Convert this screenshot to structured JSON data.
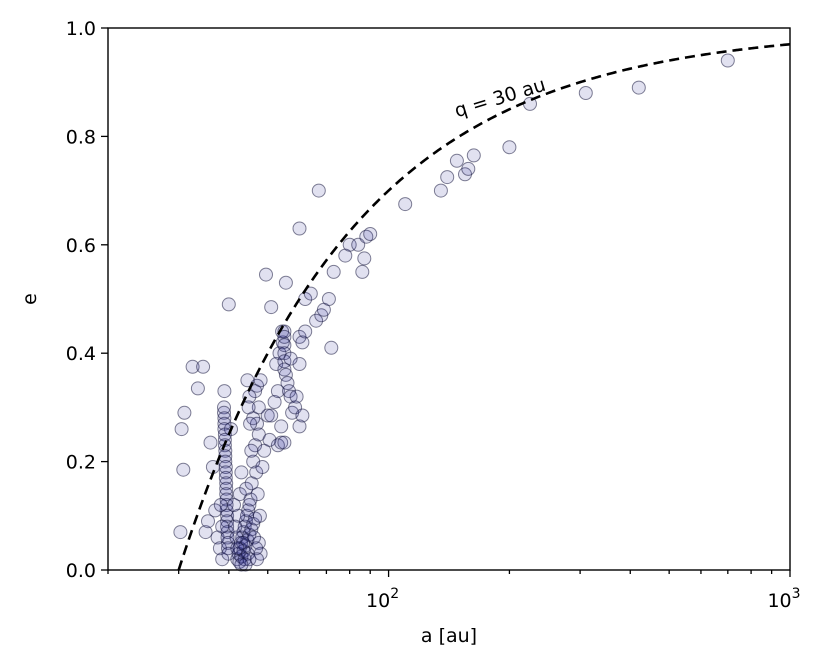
{
  "chart_data": {
    "type": "scatter",
    "xlabel": "a [au]",
    "ylabel": "e",
    "xscale": "log",
    "xlim": [
      20,
      1000
    ],
    "ylim": [
      0.0,
      1.0
    ],
    "grid": false,
    "x_ticks": [
      {
        "value": 100,
        "base": "10",
        "exp": "2"
      },
      {
        "value": 1000,
        "base": "10",
        "exp": "3"
      }
    ],
    "y_ticks": [
      "0.0",
      "0.2",
      "0.4",
      "0.6",
      "0.8",
      "1.0"
    ],
    "point_color": "#1a1a8c",
    "curve": {
      "label_text": "q  =  30  au",
      "perihelion_au": 30,
      "style": "dashed",
      "color": "#000000"
    },
    "points": [
      [
        30.5,
        0.26
      ],
      [
        31,
        0.29
      ],
      [
        30.8,
        0.185
      ],
      [
        30.3,
        0.07
      ],
      [
        32.5,
        0.375
      ],
      [
        34.5,
        0.375
      ],
      [
        33.5,
        0.335
      ],
      [
        36,
        0.235
      ],
      [
        35,
        0.07
      ],
      [
        35.5,
        0.09
      ],
      [
        36.5,
        0.19
      ],
      [
        37,
        0.11
      ],
      [
        37.5,
        0.06
      ],
      [
        38,
        0.04
      ],
      [
        38.5,
        0.02
      ],
      [
        39,
        0.33
      ],
      [
        40,
        0.49
      ],
      [
        40.5,
        0.26
      ],
      [
        38.9,
        0.3
      ],
      [
        38.9,
        0.29
      ],
      [
        39,
        0.28
      ],
      [
        39,
        0.27
      ],
      [
        39,
        0.26
      ],
      [
        39.1,
        0.25
      ],
      [
        39.1,
        0.24
      ],
      [
        39.1,
        0.23
      ],
      [
        39.2,
        0.22
      ],
      [
        39.2,
        0.21
      ],
      [
        39.2,
        0.2
      ],
      [
        39.3,
        0.19
      ],
      [
        39.3,
        0.18
      ],
      [
        39.3,
        0.17
      ],
      [
        39.4,
        0.16
      ],
      [
        39.4,
        0.15
      ],
      [
        39.4,
        0.14
      ],
      [
        39.5,
        0.13
      ],
      [
        39.5,
        0.12
      ],
      [
        39.5,
        0.11
      ],
      [
        39.6,
        0.1
      ],
      [
        39.6,
        0.09
      ],
      [
        39.6,
        0.08
      ],
      [
        39.7,
        0.07
      ],
      [
        39.7,
        0.06
      ],
      [
        39.8,
        0.05
      ],
      [
        39.8,
        0.04
      ],
      [
        39.9,
        0.03
      ],
      [
        38.2,
        0.12
      ],
      [
        38.5,
        0.08
      ],
      [
        42,
        0.02
      ],
      [
        42.3,
        0.03
      ],
      [
        42.6,
        0.04
      ],
      [
        42.9,
        0.05
      ],
      [
        43.2,
        0.06
      ],
      [
        43.5,
        0.07
      ],
      [
        43.8,
        0.08
      ],
      [
        44.1,
        0.09
      ],
      [
        44.4,
        0.1
      ],
      [
        44.7,
        0.11
      ],
      [
        45,
        0.12
      ],
      [
        45.3,
        0.13
      ],
      [
        42.5,
        0.015
      ],
      [
        43,
        0.025
      ],
      [
        43.5,
        0.035
      ],
      [
        44,
        0.045
      ],
      [
        44.5,
        0.055
      ],
      [
        45,
        0.065
      ],
      [
        45.5,
        0.075
      ],
      [
        46,
        0.085
      ],
      [
        46.5,
        0.095
      ],
      [
        41.8,
        0.06
      ],
      [
        42.2,
        0.1
      ],
      [
        42.6,
        0.14
      ],
      [
        43,
        0.18
      ],
      [
        43.4,
        0.05
      ],
      [
        43.8,
        0.02
      ],
      [
        44.2,
        0.15
      ],
      [
        44.6,
        0.03
      ],
      [
        45,
        0.02
      ],
      [
        45.6,
        0.16
      ],
      [
        46,
        0.2
      ],
      [
        46.5,
        0.23
      ],
      [
        47,
        0.27
      ],
      [
        47.5,
        0.3
      ],
      [
        47,
        0.34
      ],
      [
        48,
        0.35
      ],
      [
        46.5,
        0.33
      ],
      [
        47.5,
        0.25
      ],
      [
        46,
        0.28
      ],
      [
        45.5,
        0.22
      ],
      [
        46.8,
        0.18
      ],
      [
        47.2,
        0.14
      ],
      [
        47.8,
        0.1
      ],
      [
        46.2,
        0.06
      ],
      [
        47.5,
        0.05
      ],
      [
        48,
        0.03
      ],
      [
        46.8,
        0.04
      ],
      [
        47,
        0.02
      ],
      [
        44,
        0.01
      ],
      [
        43,
        0.01
      ],
      [
        42,
        0.04
      ],
      [
        41.5,
        0.08
      ],
      [
        41.2,
        0.12
      ],
      [
        45.2,
        0.27
      ],
      [
        44.8,
        0.3
      ],
      [
        45,
        0.32
      ],
      [
        44.5,
        0.35
      ],
      [
        48.5,
        0.19
      ],
      [
        49,
        0.22
      ],
      [
        50,
        0.285
      ],
      [
        51,
        0.285
      ],
      [
        50.5,
        0.24
      ],
      [
        52,
        0.31
      ],
      [
        53,
        0.33
      ],
      [
        52.5,
        0.38
      ],
      [
        53.5,
        0.4
      ],
      [
        54.5,
        0.42
      ],
      [
        54.3,
        0.44
      ],
      [
        55,
        0.44
      ],
      [
        55,
        0.43
      ],
      [
        55,
        0.415
      ],
      [
        55,
        0.4
      ],
      [
        55,
        0.385
      ],
      [
        55,
        0.37
      ],
      [
        55.5,
        0.36
      ],
      [
        56,
        0.345
      ],
      [
        56.5,
        0.33
      ],
      [
        57,
        0.32
      ],
      [
        57.5,
        0.29
      ],
      [
        58.5,
        0.3
      ],
      [
        59,
        0.32
      ],
      [
        60,
        0.38
      ],
      [
        60,
        0.43
      ],
      [
        61,
        0.42
      ],
      [
        62,
        0.44
      ],
      [
        57,
        0.39
      ],
      [
        53,
        0.23
      ],
      [
        54,
        0.235
      ],
      [
        55,
        0.235
      ],
      [
        60,
        0.265
      ],
      [
        61,
        0.285
      ],
      [
        54,
        0.265
      ],
      [
        49.5,
        0.545
      ],
      [
        51,
        0.485
      ],
      [
        55.5,
        0.53
      ],
      [
        60,
        0.63
      ],
      [
        62,
        0.5
      ],
      [
        64,
        0.51
      ],
      [
        66,
        0.46
      ],
      [
        67,
        0.7
      ],
      [
        68,
        0.47
      ],
      [
        69,
        0.48
      ],
      [
        71,
        0.5
      ],
      [
        72,
        0.41
      ],
      [
        73,
        0.55
      ],
      [
        78,
        0.58
      ],
      [
        80,
        0.6
      ],
      [
        84,
        0.6
      ],
      [
        86,
        0.55
      ],
      [
        87,
        0.575
      ],
      [
        88,
        0.615
      ],
      [
        90,
        0.62
      ],
      [
        110,
        0.675
      ],
      [
        135,
        0.7
      ],
      [
        140,
        0.725
      ],
      [
        148,
        0.755
      ],
      [
        155,
        0.73
      ],
      [
        158,
        0.74
      ],
      [
        163,
        0.765
      ],
      [
        200,
        0.78
      ],
      [
        225,
        0.86
      ],
      [
        310,
        0.88
      ],
      [
        420,
        0.89
      ],
      [
        700,
        0.94
      ]
    ]
  }
}
